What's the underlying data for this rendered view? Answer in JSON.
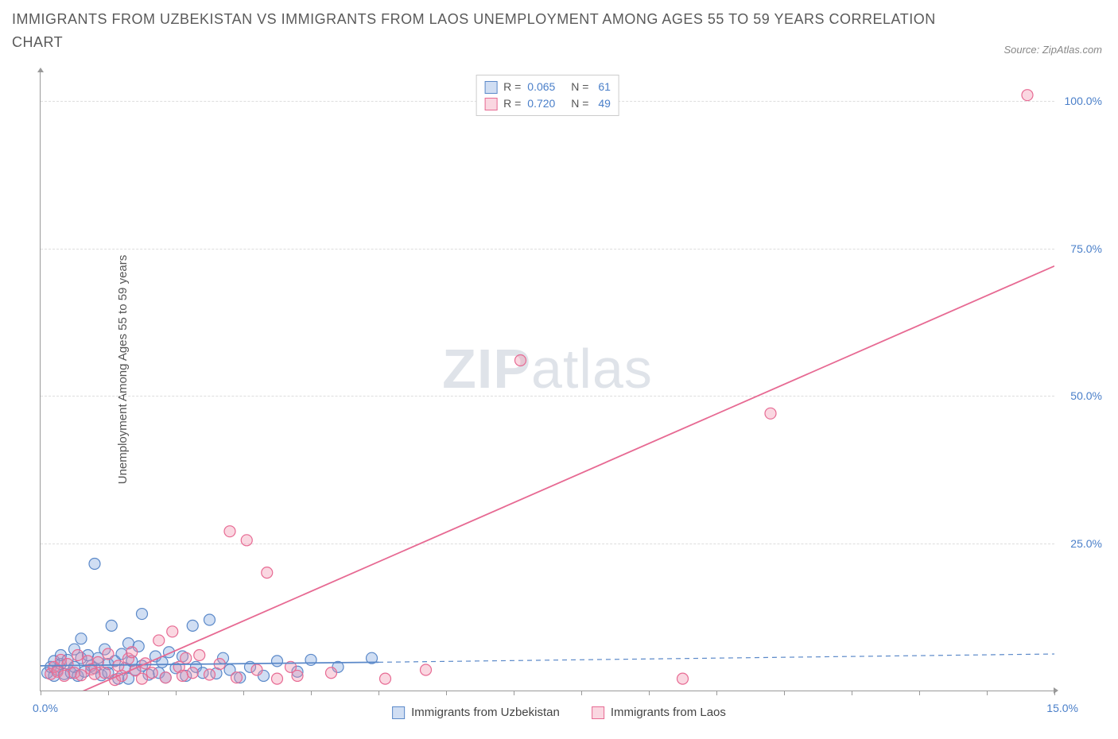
{
  "title": "IMMIGRANTS FROM UZBEKISTAN VS IMMIGRANTS FROM LAOS UNEMPLOYMENT AMONG AGES 55 TO 59 YEARS CORRELATION CHART",
  "source": "Source: ZipAtlas.com",
  "watermark_a": "ZIP",
  "watermark_b": "atlas",
  "ylabel": "Unemployment Among Ages 55 to 59 years",
  "chart": {
    "type": "scatter",
    "xlim": [
      0,
      15
    ],
    "ylim": [
      0,
      105
    ],
    "x_origin_label": "0.0%",
    "x_end_label": "15.0%",
    "y_ticks": [
      25,
      50,
      75,
      100
    ],
    "y_tick_labels": [
      "25.0%",
      "50.0%",
      "75.0%",
      "100.0%"
    ],
    "x_tick_positions": [
      0,
      1,
      2,
      3,
      4,
      5,
      6,
      7,
      8,
      9,
      10,
      11,
      12,
      13,
      14,
      15
    ],
    "grid_color": "#dddddd",
    "background_color": "#ffffff",
    "marker_radius": 7,
    "marker_stroke_width": 1.2,
    "line_width": 1.8
  },
  "series": {
    "uzbekistan": {
      "label": "Immigrants from Uzbekistan",
      "color_fill": "rgba(120,160,220,0.35)",
      "color_stroke": "#5b89c9",
      "R": "0.065",
      "N": "61",
      "trend_solid": {
        "x1": 0,
        "y1": 4.2,
        "x2": 5.0,
        "y2": 4.8
      },
      "trend_dashed": {
        "x1": 5.0,
        "y1": 4.8,
        "x2": 15.0,
        "y2": 6.2
      },
      "points": [
        [
          0.1,
          3
        ],
        [
          0.15,
          4
        ],
        [
          0.2,
          2.5
        ],
        [
          0.2,
          5
        ],
        [
          0.25,
          3.5
        ],
        [
          0.3,
          4.5
        ],
        [
          0.3,
          6
        ],
        [
          0.35,
          2.8
        ],
        [
          0.4,
          5.2
        ],
        [
          0.45,
          3
        ],
        [
          0.5,
          7
        ],
        [
          0.5,
          4
        ],
        [
          0.55,
          2.5
        ],
        [
          0.6,
          5.5
        ],
        [
          0.6,
          8.8
        ],
        [
          0.65,
          3.2
        ],
        [
          0.7,
          6
        ],
        [
          0.75,
          4.2
        ],
        [
          0.8,
          21.5
        ],
        [
          0.8,
          3.8
        ],
        [
          0.85,
          5.5
        ],
        [
          0.9,
          2.6
        ],
        [
          0.95,
          7
        ],
        [
          1.0,
          4.5
        ],
        [
          1.0,
          3
        ],
        [
          1.05,
          11
        ],
        [
          1.1,
          5
        ],
        [
          1.15,
          2
        ],
        [
          1.2,
          6.2
        ],
        [
          1.25,
          3.8
        ],
        [
          1.3,
          8
        ],
        [
          1.3,
          2
        ],
        [
          1.35,
          5
        ],
        [
          1.4,
          3.5
        ],
        [
          1.45,
          7.5
        ],
        [
          1.5,
          4.2
        ],
        [
          1.5,
          13
        ],
        [
          1.6,
          2.7
        ],
        [
          1.7,
          5.8
        ],
        [
          1.75,
          3
        ],
        [
          1.8,
          4.8
        ],
        [
          1.85,
          2.2
        ],
        [
          1.9,
          6.5
        ],
        [
          2.0,
          3.8
        ],
        [
          2.1,
          5.8
        ],
        [
          2.15,
          2.5
        ],
        [
          2.25,
          11
        ],
        [
          2.3,
          4
        ],
        [
          2.4,
          3
        ],
        [
          2.5,
          12
        ],
        [
          2.6,
          2.9
        ],
        [
          2.7,
          5.5
        ],
        [
          2.8,
          3.5
        ],
        [
          2.95,
          2.2
        ],
        [
          3.1,
          4
        ],
        [
          3.3,
          2.5
        ],
        [
          3.5,
          5
        ],
        [
          3.8,
          3.2
        ],
        [
          4.0,
          5.2
        ],
        [
          4.4,
          4
        ],
        [
          4.9,
          5.5
        ]
      ]
    },
    "laos": {
      "label": "Immigrants from Laos",
      "color_fill": "rgba(240,140,170,0.35)",
      "color_stroke": "#e76a93",
      "R": "0.720",
      "N": "49",
      "trend_solid": {
        "x1": 0.05,
        "y1": -3,
        "x2": 15.0,
        "y2": 72
      },
      "points": [
        [
          0.15,
          2.8
        ],
        [
          0.2,
          4
        ],
        [
          0.25,
          3.2
        ],
        [
          0.3,
          5.2
        ],
        [
          0.35,
          2.5
        ],
        [
          0.4,
          4.5
        ],
        [
          0.5,
          3
        ],
        [
          0.55,
          6
        ],
        [
          0.6,
          2.6
        ],
        [
          0.7,
          5
        ],
        [
          0.75,
          3.6
        ],
        [
          0.8,
          2.8
        ],
        [
          0.85,
          4.8
        ],
        [
          0.95,
          3
        ],
        [
          1.0,
          6.2
        ],
        [
          1.1,
          1.8
        ],
        [
          1.15,
          4.2
        ],
        [
          1.2,
          2.5
        ],
        [
          1.3,
          5.4
        ],
        [
          1.35,
          6.5
        ],
        [
          1.4,
          3.4
        ],
        [
          1.5,
          2
        ],
        [
          1.55,
          4.6
        ],
        [
          1.65,
          3
        ],
        [
          1.75,
          8.5
        ],
        [
          1.85,
          2.2
        ],
        [
          1.95,
          10
        ],
        [
          2.05,
          4
        ],
        [
          2.1,
          2.5
        ],
        [
          2.15,
          5.5
        ],
        [
          2.25,
          3
        ],
        [
          2.35,
          6
        ],
        [
          2.5,
          2.7
        ],
        [
          2.65,
          4.5
        ],
        [
          2.8,
          27
        ],
        [
          2.9,
          2.2
        ],
        [
          3.05,
          25.5
        ],
        [
          3.2,
          3.5
        ],
        [
          3.35,
          20
        ],
        [
          3.5,
          2
        ],
        [
          3.7,
          4
        ],
        [
          3.8,
          2.5
        ],
        [
          4.3,
          3
        ],
        [
          5.1,
          2
        ],
        [
          5.7,
          3.5
        ],
        [
          7.1,
          56
        ],
        [
          9.5,
          2
        ],
        [
          10.8,
          47
        ],
        [
          14.6,
          101
        ]
      ]
    }
  },
  "legend_top": {
    "R_label": "R =",
    "N_label": "N ="
  }
}
